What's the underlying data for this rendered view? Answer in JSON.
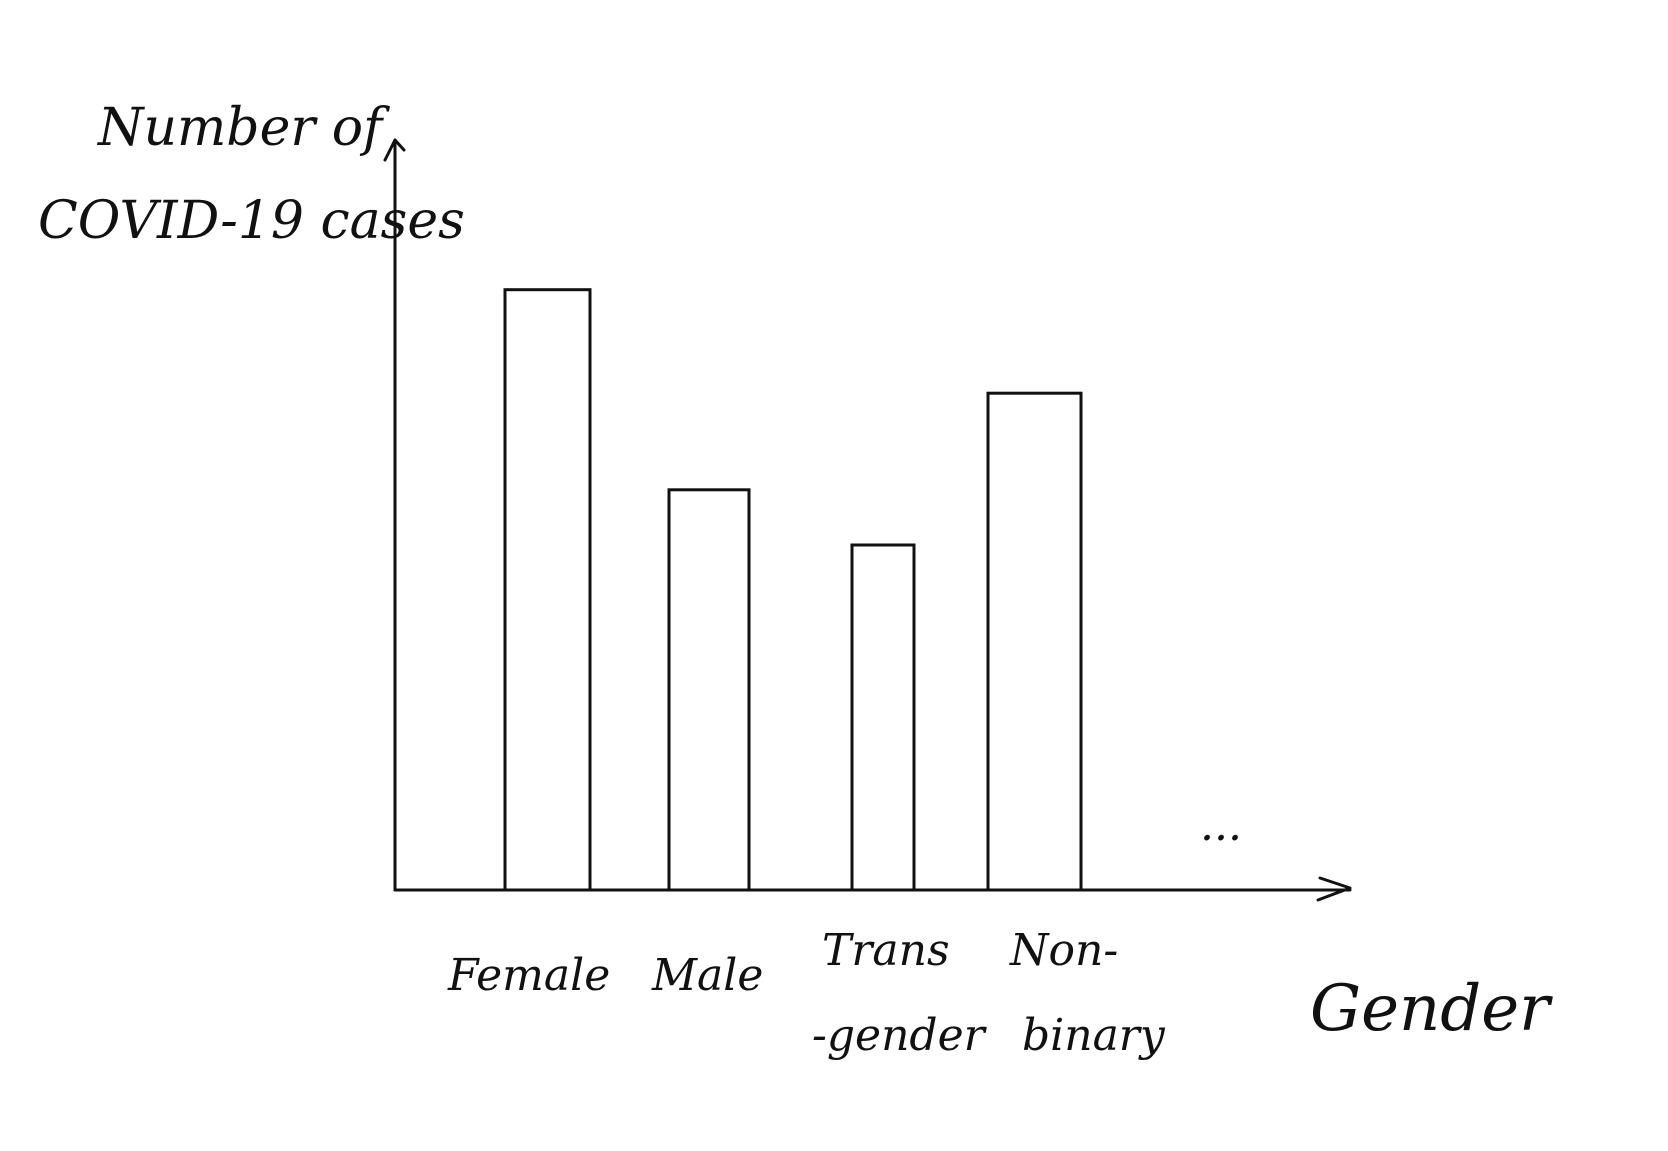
{
  "chart_data": {
    "type": "bar",
    "ylabel_lines": [
      "Number of",
      "COVID-19 cases"
    ],
    "xlabel": "Gender",
    "categories": [
      {
        "lines": [
          "Female"
        ]
      },
      {
        "lines": [
          "Male"
        ]
      },
      {
        "lines": [
          "Trans",
          "-gender"
        ]
      },
      {
        "lines": [
          "Non-",
          "binary"
        ]
      }
    ],
    "values": [
      0.87,
      0.58,
      0.5,
      0.72
    ],
    "ylim": [
      0,
      1
    ],
    "value_scale_note": "",
    "trailing_marker": "...",
    "grid": false,
    "legend": "none",
    "colors": {
      "stroke": "#111111",
      "fill": "#ffffff"
    }
  }
}
